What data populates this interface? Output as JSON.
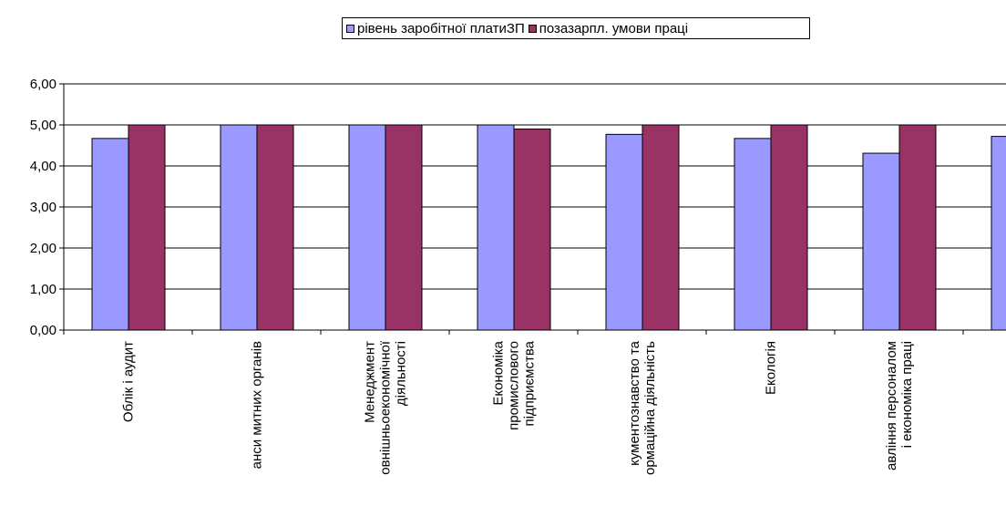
{
  "chart_data": {
    "type": "bar",
    "title": "",
    "xlabel": "",
    "ylabel": "",
    "ylim": [
      0,
      6
    ],
    "yticks": [
      "0,00",
      "1,00",
      "2,00",
      "3,00",
      "4,00",
      "5,00",
      "6,00"
    ],
    "grid": true,
    "legend_position": "top",
    "categories": [
      [
        "Облік і аудит"
      ],
      [
        "анси митних органів"
      ],
      [
        "Менеджмент",
        "овнішньоекономічної",
        "діяльності"
      ],
      [
        "Економіка",
        "промислового",
        "підприємства"
      ],
      [
        "кументознавство та",
        "ормаційна діяльність"
      ],
      [
        "Екологія"
      ],
      [
        "авління персоналом",
        "і економіка праці"
      ],
      [
        ""
      ]
    ],
    "series": [
      {
        "name": "рівень заробітної платиЗП",
        "color": "#9999ff",
        "values": [
          4.67,
          5.0,
          5.0,
          5.0,
          4.77,
          4.67,
          4.31,
          4.72
        ]
      },
      {
        "name": "позазарпл. умови праці",
        "color": "#993366",
        "values": [
          5.0,
          5.0,
          5.0,
          4.9,
          5.0,
          5.0,
          5.0,
          null
        ]
      }
    ]
  }
}
